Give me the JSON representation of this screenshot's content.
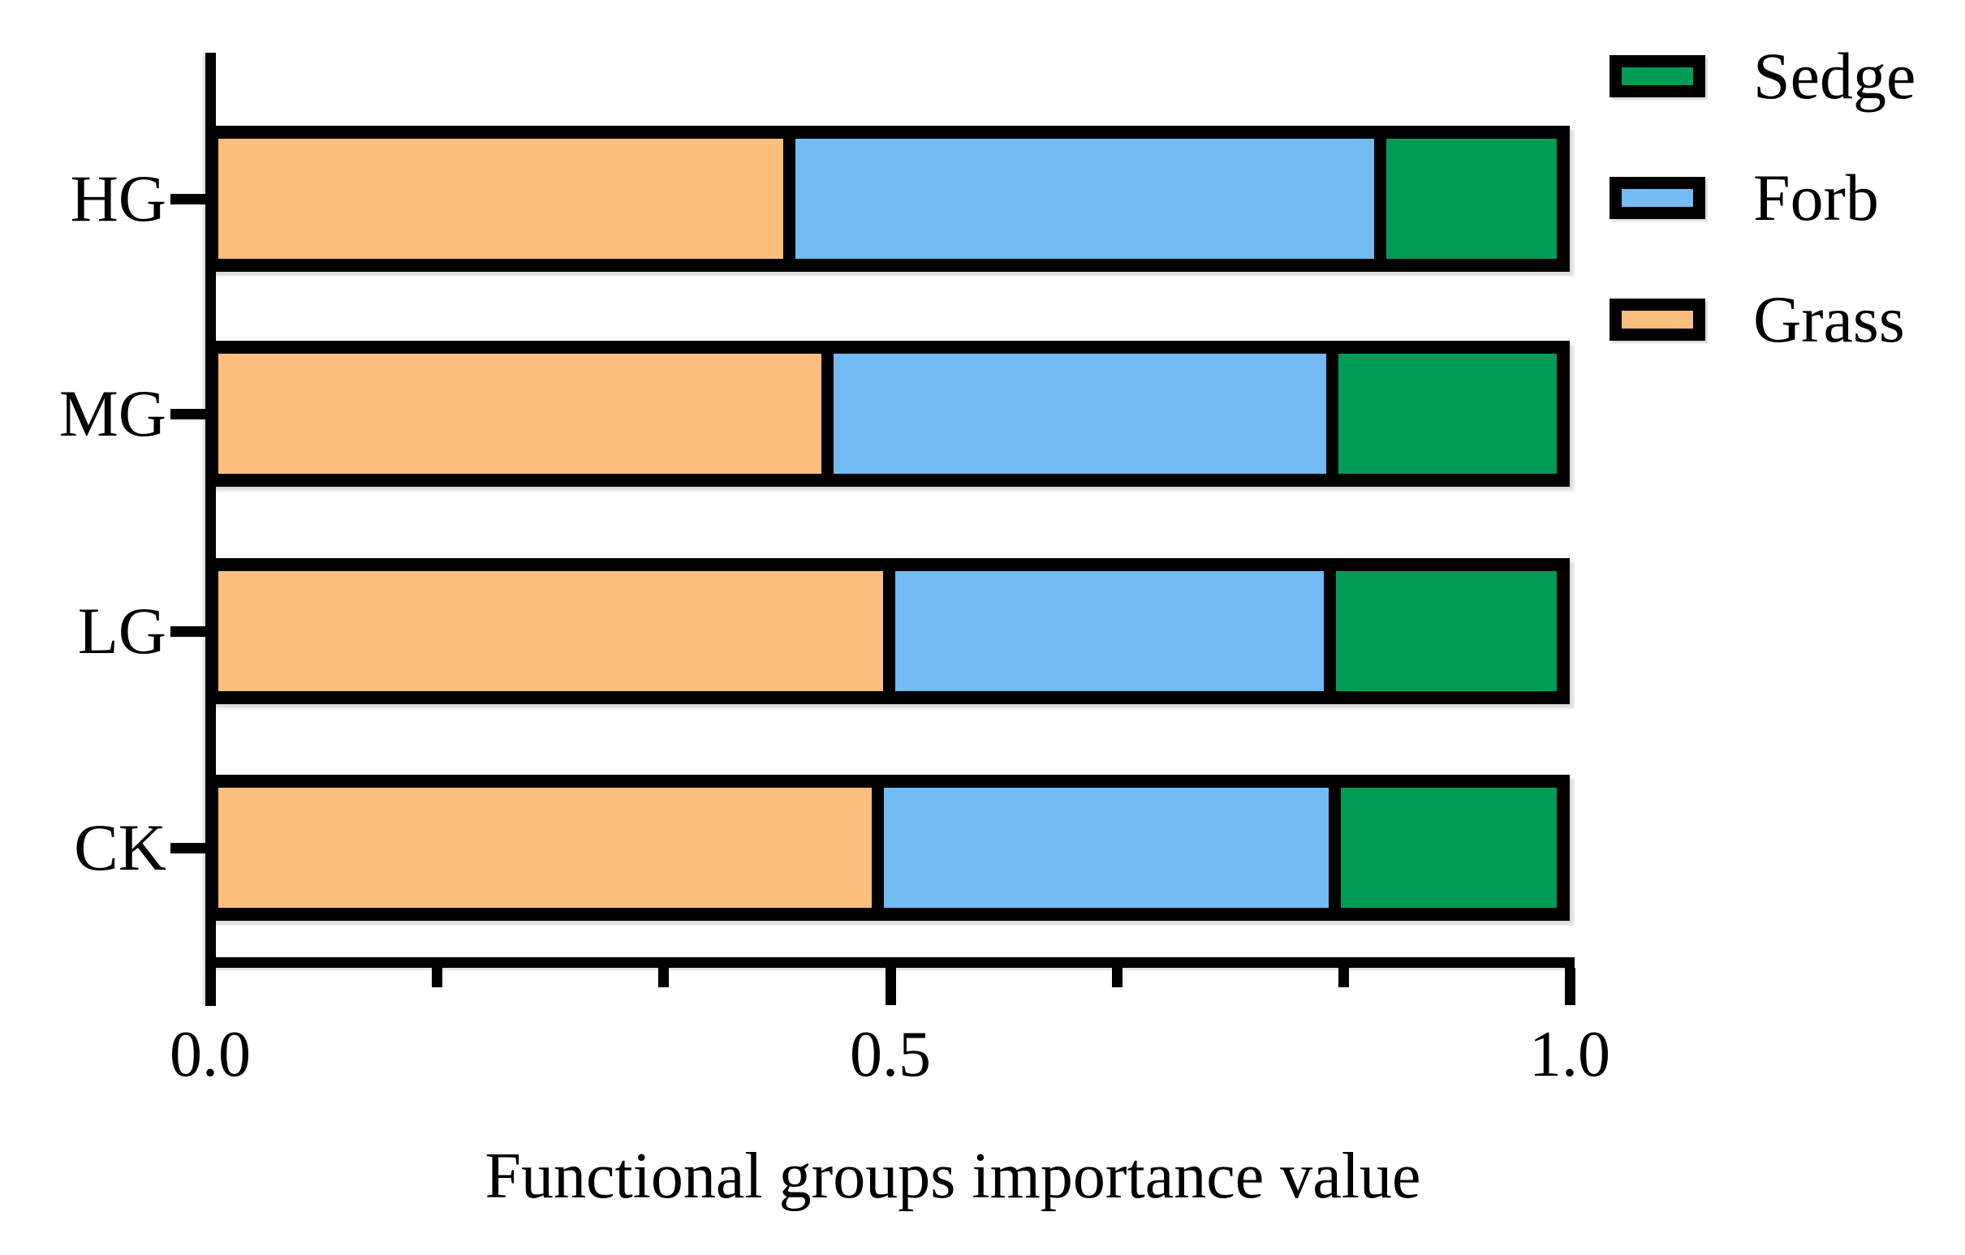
{
  "figure": {
    "kind": "horizontal stacked bar chart",
    "background": "#ffffff"
  },
  "colors": {
    "grass": "#FBBE7D",
    "forb": "#73BBF3",
    "sedge": "#009C55",
    "outline": "#000000",
    "text": "#000000"
  },
  "legend": {
    "entries": [
      {
        "label": "Sedge",
        "color_key": "sedge"
      },
      {
        "label": "Forb",
        "color_key": "forb"
      },
      {
        "label": "Grass",
        "color_key": "grass"
      }
    ]
  },
  "chart_data": {
    "type": "bar",
    "orientation": "horizontal",
    "stacked": true,
    "title": "",
    "xlabel": "Functional groups importance value",
    "ylabel": "",
    "categories": [
      "HG",
      "MG",
      "LG",
      "CK"
    ],
    "series": [
      {
        "name": "Grass",
        "color_key": "grass",
        "values": [
          0.43,
          0.459,
          0.506,
          0.497
        ]
      },
      {
        "name": "Forb",
        "color_key": "forb",
        "values": [
          0.44,
          0.375,
          0.326,
          0.339
        ]
      },
      {
        "name": "Sedge",
        "color_key": "sedge",
        "values": [
          0.13,
          0.166,
          0.168,
          0.164
        ]
      }
    ],
    "xlim": [
      0.0,
      1.0
    ],
    "x_major_ticks": [
      0.0,
      0.5,
      1.0
    ],
    "x_tick_labels": [
      "0.0",
      "0.5",
      "1.0"
    ],
    "x_minor_ticks": [
      0.1667,
      0.3333,
      0.6667,
      0.8333
    ],
    "grid": false,
    "legend_position": "top-right outside plot"
  }
}
